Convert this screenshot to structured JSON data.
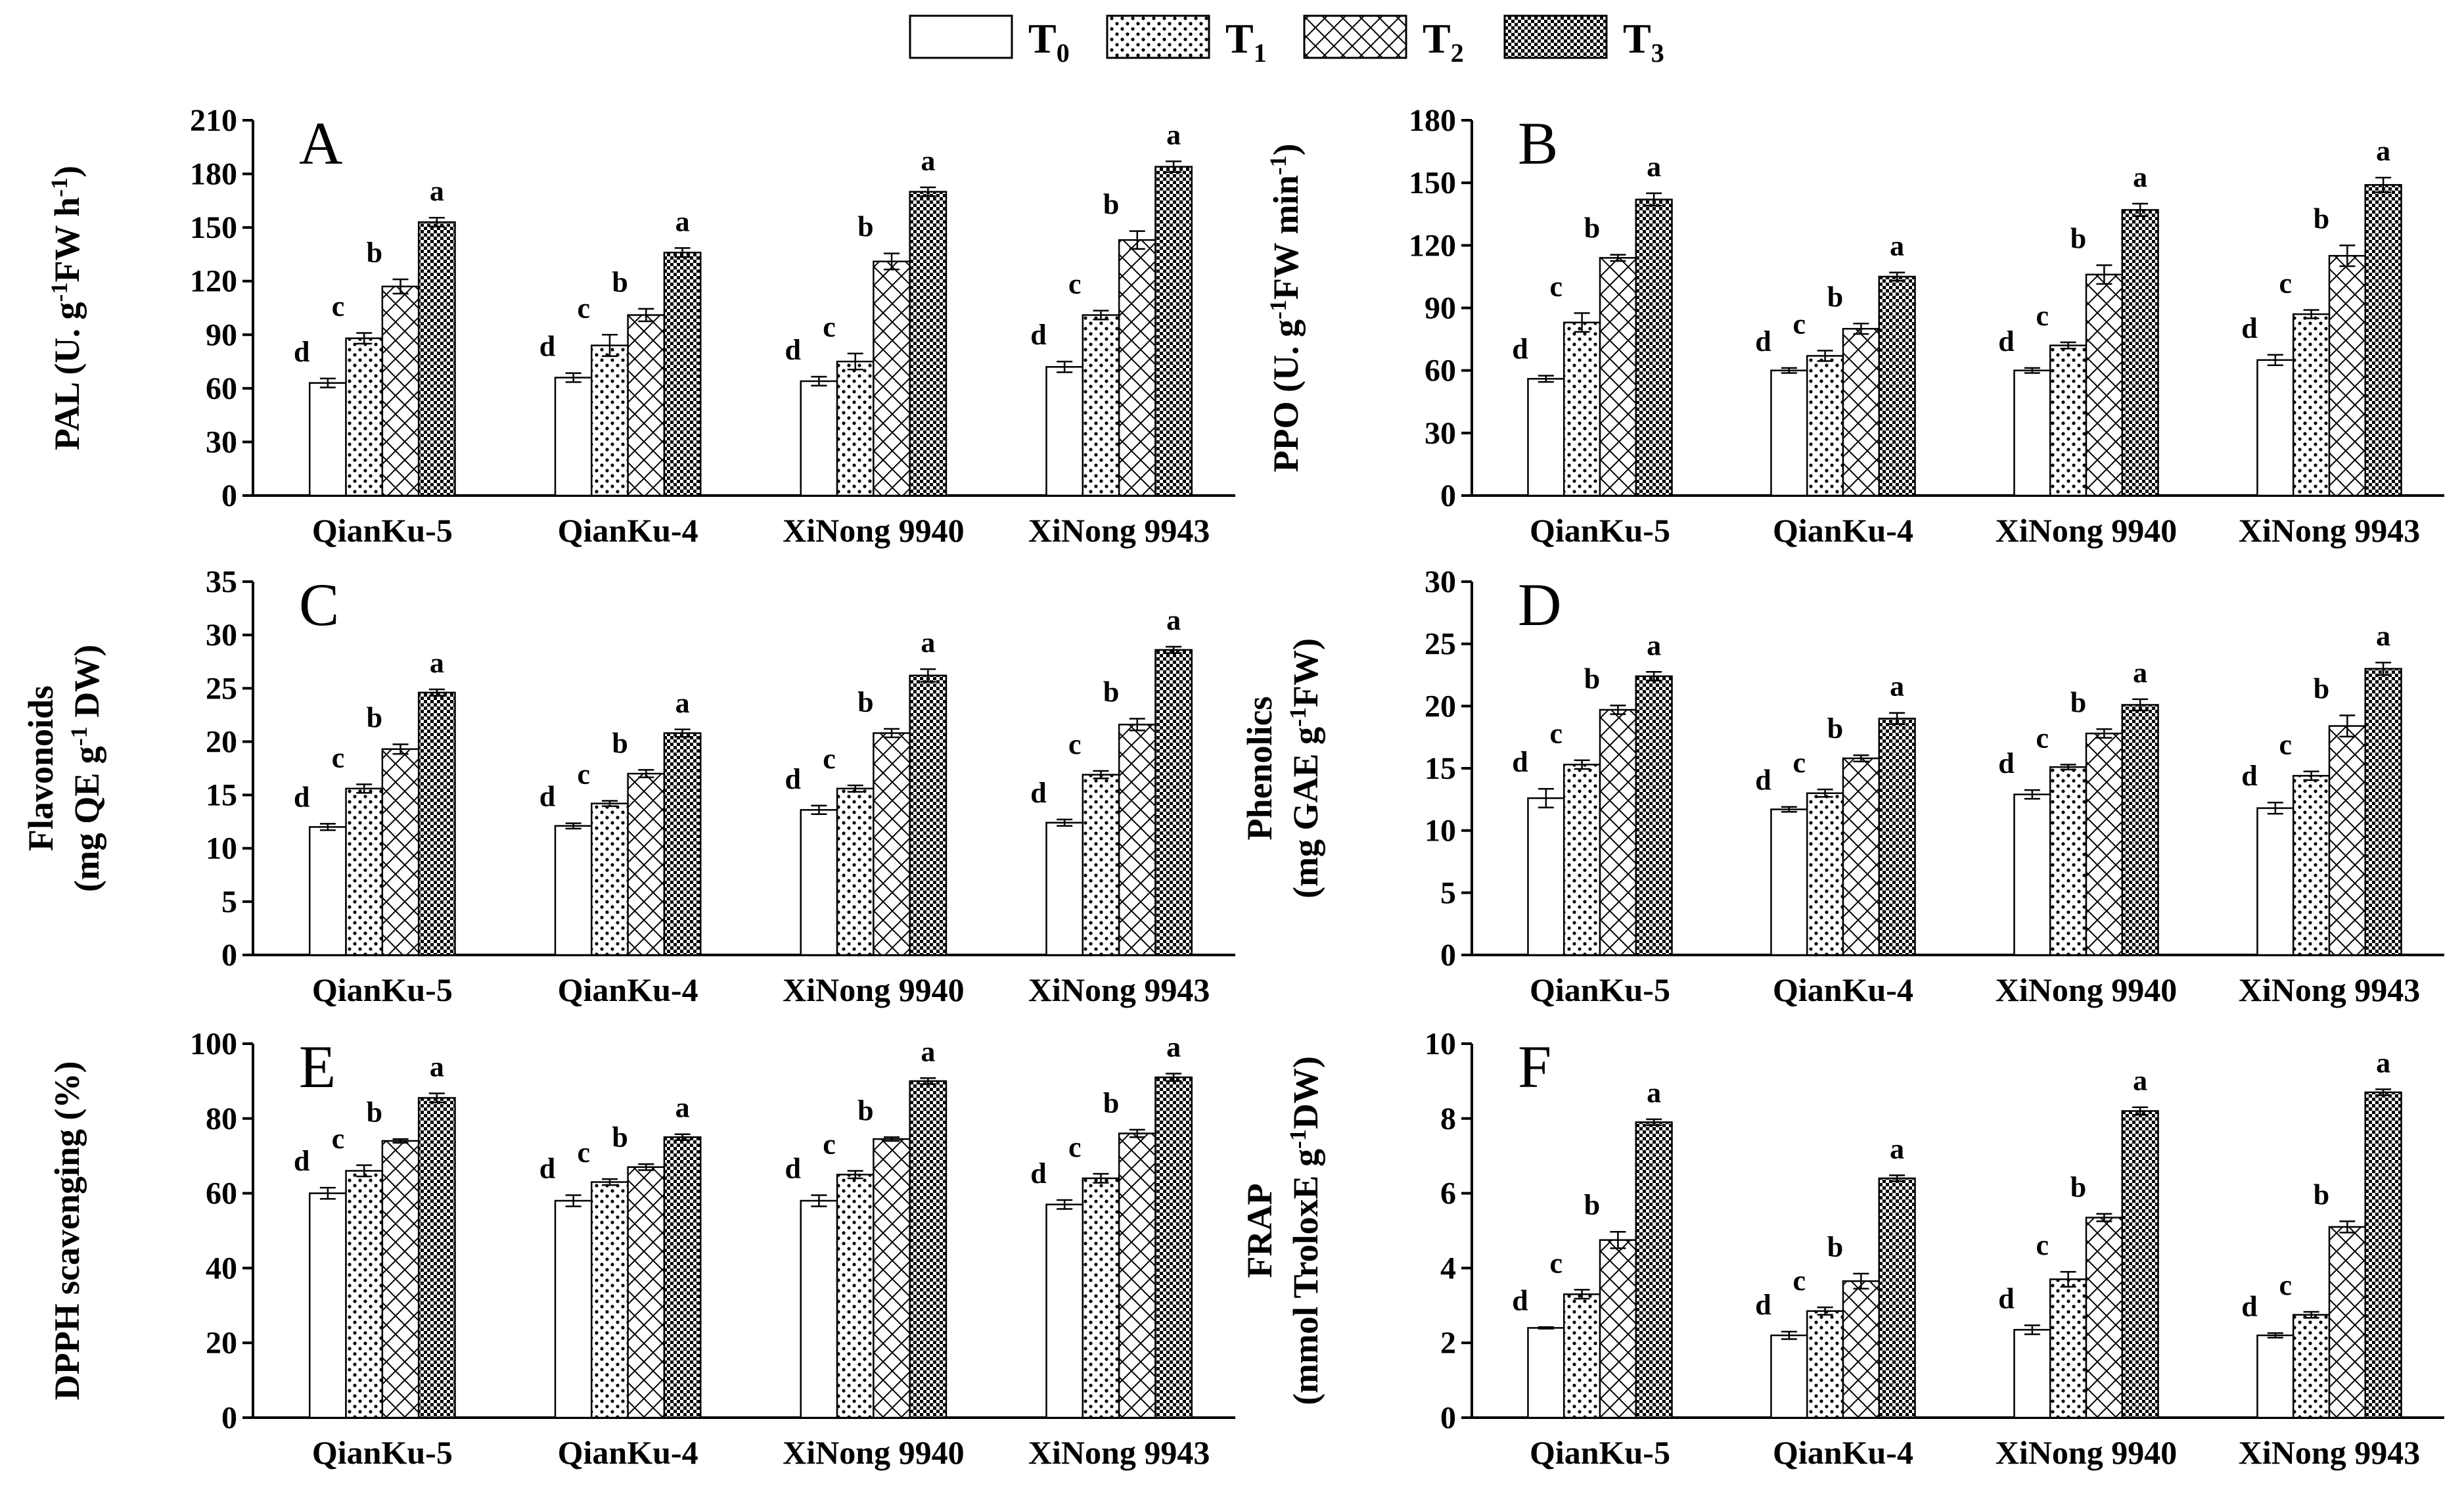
{
  "legend": [
    {
      "name": "T",
      "sub": "0",
      "pattern": "none"
    },
    {
      "name": "T",
      "sub": "1",
      "pattern": "dots"
    },
    {
      "name": "T",
      "sub": "2",
      "pattern": "cross"
    },
    {
      "name": "T",
      "sub": "3",
      "pattern": "dense"
    }
  ],
  "chart_data": [
    {
      "panel": "A",
      "type": "bar",
      "ylabel_parts": [
        [
          "PAL (U. g",
          ""
        ],
        [
          "-1",
          "sup"
        ],
        [
          "FW h",
          ""
        ],
        [
          "-1",
          "sup"
        ],
        [
          ")",
          ""
        ]
      ],
      "ylim": [
        0,
        210
      ],
      "ticks": [
        0,
        30,
        60,
        90,
        120,
        150,
        180,
        210
      ],
      "categories": [
        "QianKu-5",
        "QianKu-4",
        "XiNong 9940",
        "XiNong 9943"
      ],
      "series": [
        {
          "name": "T0",
          "values": [
            63,
            66,
            64,
            72
          ],
          "errors": [
            2.5,
            2.5,
            2.5,
            3
          ],
          "labels": [
            "d",
            "d",
            "d",
            "d"
          ]
        },
        {
          "name": "T1",
          "values": [
            88,
            84,
            75,
            101
          ],
          "errors": [
            3,
            6,
            4.5,
            2.5
          ],
          "labels": [
            "c",
            "c",
            "c",
            "c"
          ]
        },
        {
          "name": "T2",
          "values": [
            117,
            101,
            131,
            143
          ],
          "errors": [
            4,
            3.5,
            4.5,
            5
          ],
          "labels": [
            "b",
            "b",
            "b",
            "b"
          ]
        },
        {
          "name": "T3",
          "values": [
            153,
            136,
            170,
            184
          ],
          "errors": [
            2.5,
            2.5,
            2.5,
            3
          ],
          "labels": [
            "a",
            "a",
            "a",
            "a"
          ]
        }
      ]
    },
    {
      "panel": "B",
      "type": "bar",
      "ylabel_parts": [
        [
          "PPO (U. g",
          ""
        ],
        [
          "-1",
          "sup"
        ],
        [
          "FW min",
          ""
        ],
        [
          "-1",
          "sup"
        ],
        [
          ")",
          ""
        ]
      ],
      "ylim": [
        0,
        180
      ],
      "ticks": [
        0,
        30,
        60,
        90,
        120,
        150,
        180
      ],
      "categories": [
        "QianKu-5",
        "QianKu-4",
        "XiNong 9940",
        "XiNong 9943"
      ],
      "series": [
        {
          "name": "T0",
          "values": [
            56,
            60,
            60,
            65
          ],
          "errors": [
            1.5,
            1.2,
            1.2,
            2.5
          ],
          "labels": [
            "d",
            "d",
            "d",
            "d"
          ]
        },
        {
          "name": "T1",
          "values": [
            83,
            67,
            72,
            87
          ],
          "errors": [
            4.5,
            2.5,
            1.5,
            2
          ],
          "labels": [
            "c",
            "c",
            "c",
            "c"
          ]
        },
        {
          "name": "T2",
          "values": [
            114,
            80,
            106,
            115
          ],
          "errors": [
            1.5,
            2.5,
            4.5,
            5
          ],
          "labels": [
            "b",
            "b",
            "b",
            "b"
          ]
        },
        {
          "name": "T3",
          "values": [
            142,
            105,
            137,
            149
          ],
          "errors": [
            3,
            2,
            3,
            3.5
          ],
          "labels": [
            "a",
            "a",
            "a",
            "a"
          ]
        }
      ]
    },
    {
      "panel": "C",
      "type": "bar",
      "ylabel_parts": [
        [
          "Flavonoids",
          "line1"
        ],
        [
          "(mg QE g",
          ""
        ],
        [
          "-1",
          "sup"
        ],
        [
          " DW)",
          ""
        ]
      ],
      "ylim": [
        0,
        35
      ],
      "ticks": [
        0,
        5,
        10,
        15,
        20,
        25,
        30,
        35
      ],
      "categories": [
        "QianKu-5",
        "QianKu-4",
        "XiNong 9940",
        "XiNong 9943"
      ],
      "series": [
        {
          "name": "T0",
          "values": [
            12.0,
            12.1,
            13.6,
            12.4
          ],
          "errors": [
            0.3,
            0.25,
            0.4,
            0.3
          ],
          "labels": [
            "d",
            "d",
            "d",
            "d"
          ]
        },
        {
          "name": "T1",
          "values": [
            15.6,
            14.2,
            15.6,
            16.9
          ],
          "errors": [
            0.4,
            0.25,
            0.3,
            0.35
          ],
          "labels": [
            "c",
            "c",
            "c",
            "c"
          ]
        },
        {
          "name": "T2",
          "values": [
            19.3,
            17.0,
            20.8,
            21.6
          ],
          "errors": [
            0.45,
            0.35,
            0.4,
            0.55
          ],
          "labels": [
            "b",
            "b",
            "b",
            "b"
          ]
        },
        {
          "name": "T3",
          "values": [
            24.6,
            20.8,
            26.2,
            28.6
          ],
          "errors": [
            0.3,
            0.35,
            0.6,
            0.3
          ],
          "labels": [
            "a",
            "a",
            "a",
            "a"
          ]
        }
      ]
    },
    {
      "panel": "D",
      "type": "bar",
      "ylabel_parts": [
        [
          "Phenolics",
          "line1"
        ],
        [
          "(mg GAE g",
          ""
        ],
        [
          "-1",
          "sup"
        ],
        [
          "FW)",
          ""
        ]
      ],
      "ylim": [
        0,
        30
      ],
      "ticks": [
        0,
        5,
        10,
        15,
        20,
        25,
        30
      ],
      "categories": [
        "QianKu-5",
        "QianKu-4",
        "XiNong 9940",
        "XiNong 9943"
      ],
      "series": [
        {
          "name": "T0",
          "values": [
            12.6,
            11.7,
            12.9,
            11.8
          ],
          "errors": [
            0.75,
            0.2,
            0.35,
            0.45
          ],
          "labels": [
            "d",
            "d",
            "d",
            "d"
          ]
        },
        {
          "name": "T1",
          "values": [
            15.3,
            13.0,
            15.1,
            14.4
          ],
          "errors": [
            0.35,
            0.3,
            0.2,
            0.35
          ],
          "labels": [
            "c",
            "c",
            "c",
            "c"
          ]
        },
        {
          "name": "T2",
          "values": [
            19.7,
            15.8,
            17.8,
            18.4
          ],
          "errors": [
            0.35,
            0.25,
            0.35,
            0.85
          ],
          "labels": [
            "b",
            "b",
            "b",
            "b"
          ]
        },
        {
          "name": "T3",
          "values": [
            22.4,
            19.0,
            20.1,
            23.0
          ],
          "errors": [
            0.35,
            0.45,
            0.45,
            0.5
          ],
          "labels": [
            "a",
            "a",
            "a",
            "a"
          ]
        }
      ]
    },
    {
      "panel": "E",
      "type": "bar",
      "ylabel_parts": [
        [
          "DPPH scavenging (%)",
          ""
        ]
      ],
      "ylim": [
        0,
        100
      ],
      "ticks": [
        0,
        20,
        40,
        60,
        80,
        100
      ],
      "categories": [
        "QianKu-5",
        "QianKu-4",
        "XiNong 9940",
        "XiNong 9943"
      ],
      "series": [
        {
          "name": "T0",
          "values": [
            60,
            58,
            58,
            57
          ],
          "errors": [
            1.5,
            1.5,
            1.5,
            1.2
          ],
          "labels": [
            "d",
            "d",
            "d",
            "d"
          ]
        },
        {
          "name": "T1",
          "values": [
            66,
            63,
            65,
            64
          ],
          "errors": [
            1.5,
            0.8,
            1,
            1.2
          ],
          "labels": [
            "c",
            "c",
            "c",
            "c"
          ]
        },
        {
          "name": "T2",
          "values": [
            74,
            67,
            74.5,
            76
          ],
          "errors": [
            0.5,
            0.8,
            0.5,
            1
          ],
          "labels": [
            "b",
            "b",
            "b",
            "b"
          ]
        },
        {
          "name": "T3",
          "values": [
            85.5,
            75,
            90,
            91
          ],
          "errors": [
            1.2,
            0.8,
            0.8,
            1
          ],
          "labels": [
            "a",
            "a",
            "a",
            "a"
          ]
        }
      ]
    },
    {
      "panel": "F",
      "type": "bar",
      "ylabel_parts": [
        [
          "FRAP",
          "line1"
        ],
        [
          "(mmol TroloxE g",
          ""
        ],
        [
          "-1",
          "sup"
        ],
        [
          "DW)",
          ""
        ]
      ],
      "ylim": [
        0,
        10
      ],
      "ticks": [
        0,
        2,
        4,
        6,
        8,
        10
      ],
      "categories": [
        "QianKu-5",
        "QianKu-4",
        "XiNong 9940",
        "XiNong 9943"
      ],
      "series": [
        {
          "name": "T0",
          "values": [
            2.4,
            2.2,
            2.35,
            2.2
          ],
          "errors": [
            0.02,
            0.1,
            0.12,
            0.06
          ],
          "labels": [
            "d",
            "d",
            "d",
            "d"
          ]
        },
        {
          "name": "T1",
          "values": [
            3.3,
            2.85,
            3.7,
            2.75
          ],
          "errors": [
            0.12,
            0.1,
            0.2,
            0.08
          ],
          "labels": [
            "c",
            "c",
            "c",
            "c"
          ]
        },
        {
          "name": "T2",
          "values": [
            4.75,
            3.65,
            5.35,
            5.1
          ],
          "errors": [
            0.22,
            0.2,
            0.1,
            0.15
          ],
          "labels": [
            "b",
            "b",
            "b",
            "b"
          ]
        },
        {
          "name": "T3",
          "values": [
            7.9,
            6.4,
            8.2,
            8.7
          ],
          "errors": [
            0.08,
            0.08,
            0.1,
            0.08
          ],
          "labels": [
            "a",
            "a",
            "a",
            "a"
          ]
        }
      ]
    }
  ]
}
